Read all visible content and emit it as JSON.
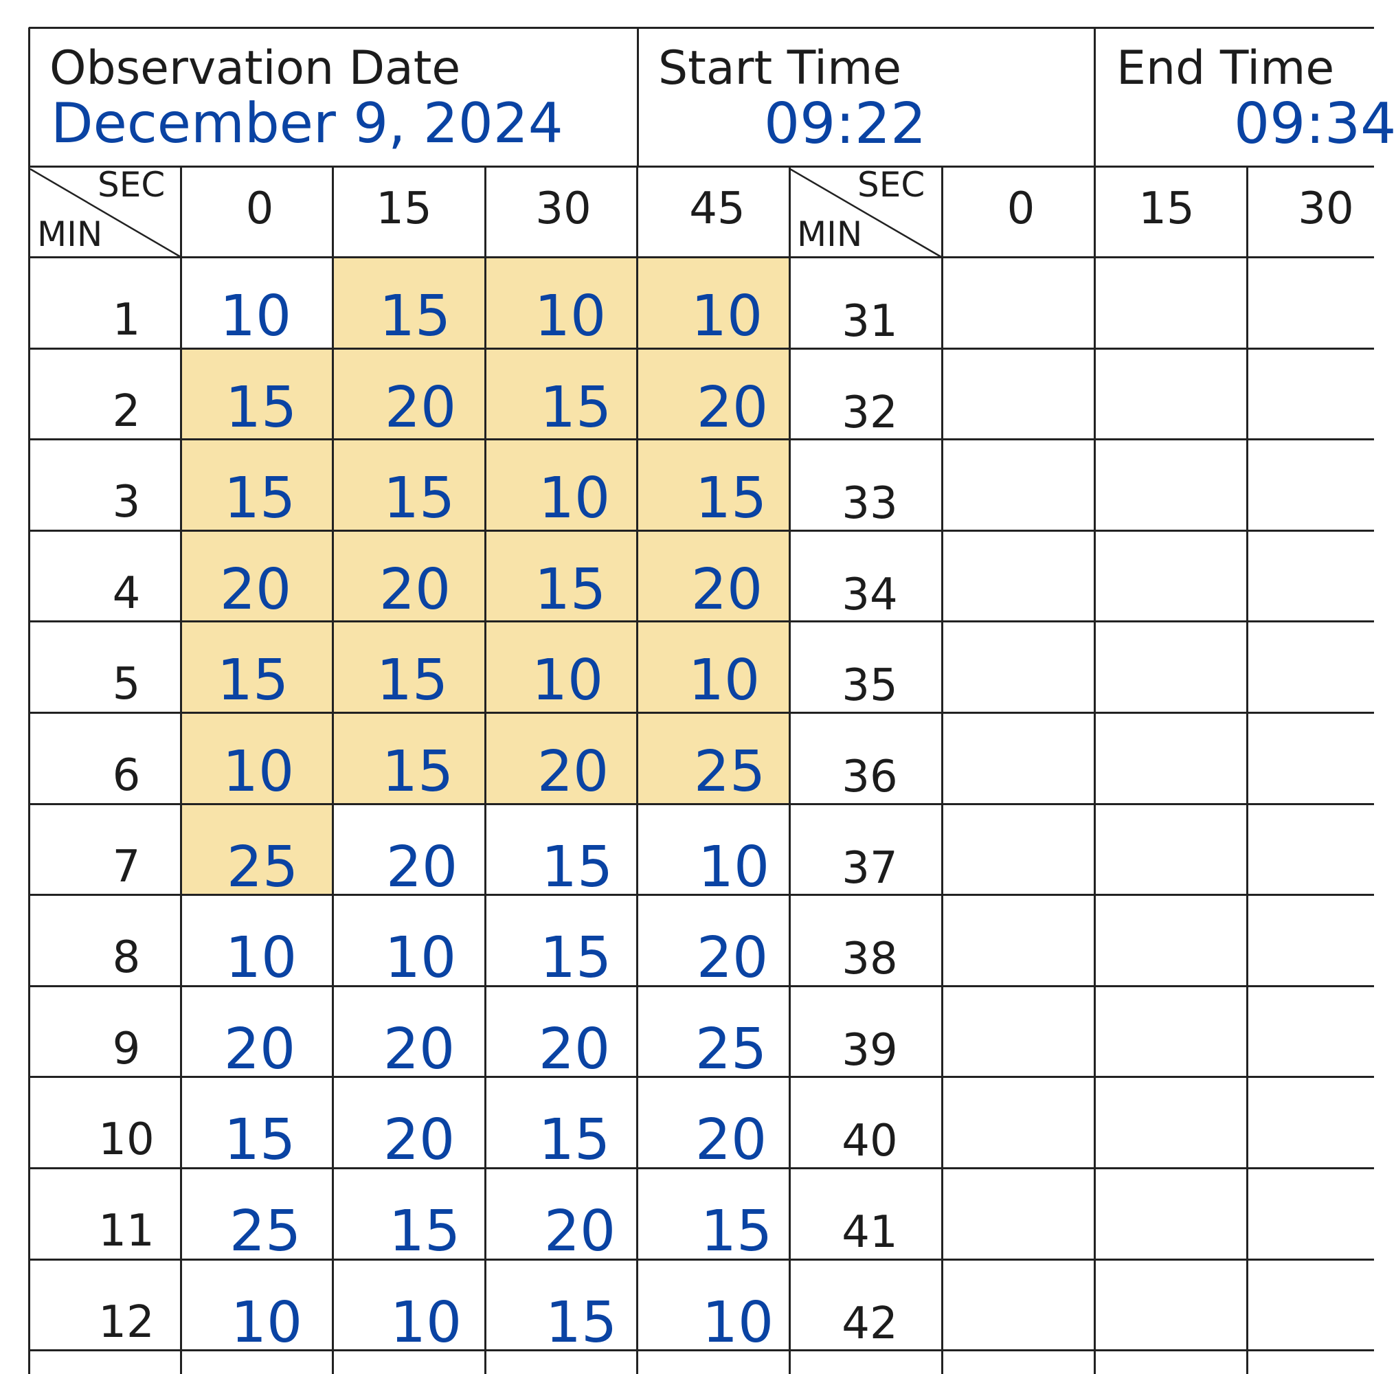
{
  "header": {
    "date_label": "Observation Date",
    "date_value": "December 9, 2024",
    "start_label": "Start Time",
    "start_value": "09:22",
    "end_label": "End Time",
    "end_value": "09:34"
  },
  "grid_headers": {
    "sec_label": "SEC",
    "min_label": "MIN",
    "left_seconds": [
      "0",
      "15",
      "30",
      "45"
    ],
    "right_seconds": [
      "0",
      "15",
      "30"
    ]
  },
  "rows": [
    {
      "minute": "1",
      "values": [
        "10",
        "15",
        "10",
        "10"
      ],
      "highlighted": [
        false,
        true,
        true,
        true
      ],
      "minute_right": "31"
    },
    {
      "minute": "2",
      "values": [
        "15",
        "20",
        "15",
        "20"
      ],
      "highlighted": [
        true,
        true,
        true,
        true
      ],
      "minute_right": "32"
    },
    {
      "minute": "3",
      "values": [
        "15",
        "15",
        "10",
        "15"
      ],
      "highlighted": [
        true,
        true,
        true,
        true
      ],
      "minute_right": "33"
    },
    {
      "minute": "4",
      "values": [
        "20",
        "20",
        "15",
        "20"
      ],
      "highlighted": [
        true,
        true,
        true,
        true
      ],
      "minute_right": "34"
    },
    {
      "minute": "5",
      "values": [
        "15",
        "15",
        "10",
        "10"
      ],
      "highlighted": [
        true,
        true,
        true,
        true
      ],
      "minute_right": "35"
    },
    {
      "minute": "6",
      "values": [
        "10",
        "15",
        "20",
        "25"
      ],
      "highlighted": [
        true,
        true,
        true,
        true
      ],
      "minute_right": "36"
    },
    {
      "minute": "7",
      "values": [
        "25",
        "20",
        "15",
        "10"
      ],
      "highlighted": [
        true,
        false,
        false,
        false
      ],
      "minute_right": "37"
    },
    {
      "minute": "8",
      "values": [
        "10",
        "10",
        "15",
        "20"
      ],
      "highlighted": [
        false,
        false,
        false,
        false
      ],
      "minute_right": "38"
    },
    {
      "minute": "9",
      "values": [
        "20",
        "20",
        "20",
        "25"
      ],
      "highlighted": [
        false,
        false,
        false,
        false
      ],
      "minute_right": "39"
    },
    {
      "minute": "10",
      "values": [
        "15",
        "20",
        "15",
        "20"
      ],
      "highlighted": [
        false,
        false,
        false,
        false
      ],
      "minute_right": "40"
    },
    {
      "minute": "11",
      "values": [
        "25",
        "15",
        "20",
        "15"
      ],
      "highlighted": [
        false,
        false,
        false,
        false
      ],
      "minute_right": "41"
    },
    {
      "minute": "12",
      "values": [
        "10",
        "10",
        "15",
        "10"
      ],
      "highlighted": [
        false,
        false,
        false,
        false
      ],
      "minute_right": "42"
    }
  ],
  "colors": {
    "ink_blue": "#0a43a3",
    "highlight": "#f8e3a9",
    "rule": "#222222"
  }
}
